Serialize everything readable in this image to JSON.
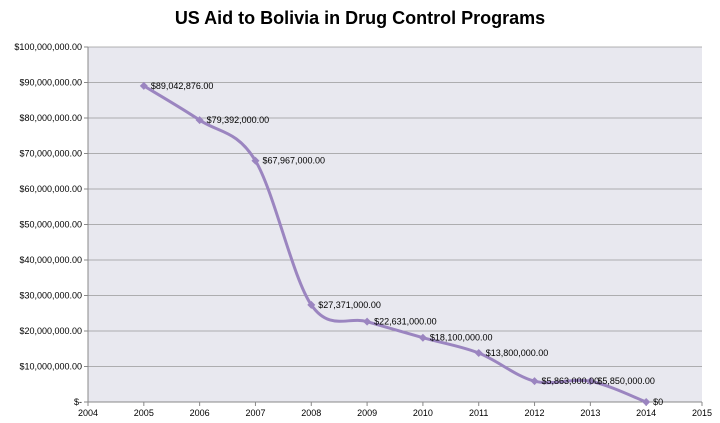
{
  "chart_data": {
    "type": "line",
    "title": "US Aid to Bolivia in Drug Control Programs",
    "xlabel": "",
    "ylabel": "",
    "x_ticks": [
      "2004",
      "2005",
      "2006",
      "2007",
      "2008",
      "2009",
      "2010",
      "2011",
      "2012",
      "2013",
      "2014",
      "2015"
    ],
    "y_ticks": [
      "$-",
      "$10,000,000.00",
      "$20,000,000.00",
      "$30,000,000.00",
      "$40,000,000.00",
      "$50,000,000.00",
      "$60,000,000.00",
      "$70,000,000.00",
      "$80,000,000.00",
      "$90,000,000.00",
      "$100,000,000.00"
    ],
    "xlim": [
      2004,
      2015
    ],
    "ylim": [
      0,
      100000000
    ],
    "grid": true,
    "line_color": "#9b85c0",
    "plot_background": "#e8e8ef",
    "series": [
      {
        "x": [
          2005,
          2006,
          2007,
          2008,
          2009,
          2010,
          2011,
          2012,
          2013,
          2014
        ],
        "y": [
          89042876,
          79392000,
          67967000,
          27371000,
          22631000,
          18100000,
          13800000,
          5863000,
          5850000,
          0
        ],
        "labels": [
          "$89,042,876.00",
          "$79,392,000.00",
          "$67,967,000.00",
          "$27,371,000.00",
          "$22,631,000.00",
          "$18,100,000.00",
          "$13,800,000.00",
          "$5,863,000.00",
          "$5,850,000.00",
          "$0"
        ]
      }
    ]
  }
}
